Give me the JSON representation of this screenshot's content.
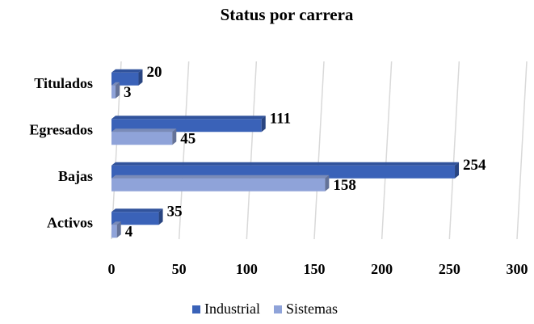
{
  "chart_data": {
    "type": "bar",
    "orientation": "horizontal",
    "title": "Status por carrera",
    "categories": [
      "Titulados",
      "Egresados",
      "Bajas",
      "Activos"
    ],
    "series": [
      {
        "name": "Industrial",
        "color": "#3a62b8",
        "values": [
          20,
          111,
          254,
          35
        ]
      },
      {
        "name": "Sistemas",
        "color": "#8fa3d9",
        "values": [
          3,
          45,
          158,
          4
        ]
      }
    ],
    "xlim": [
      0,
      300
    ],
    "xticks": [
      0,
      50,
      100,
      150,
      200,
      250,
      300
    ],
    "grid": true,
    "legend": "bottom"
  }
}
